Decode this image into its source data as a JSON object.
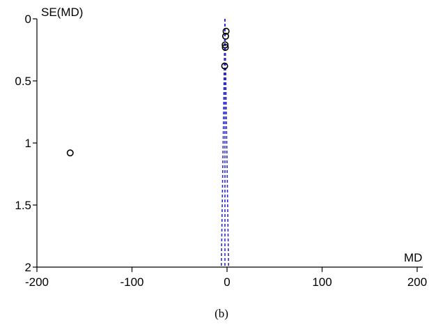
{
  "chart_data": {
    "type": "scatter",
    "subtype": "funnel-plot",
    "caption": "(b)",
    "ylabel": "SE(MD)",
    "xlabel": "MD",
    "xlim": [
      -200,
      200
    ],
    "ylim": [
      0,
      2
    ],
    "y_inverted": true,
    "x_ticks": [
      -200,
      -100,
      0,
      100,
      200
    ],
    "x_tick_labels": [
      "-200",
      "-100",
      "0",
      "100",
      "200"
    ],
    "y_ticks": [
      0,
      0.5,
      1,
      1.5,
      2
    ],
    "y_tick_labels": [
      "0",
      "0.5",
      "1",
      "1.5",
      "2"
    ],
    "grid": false,
    "points": [
      {
        "x": -1,
        "y": 0.1
      },
      {
        "x": -1.5,
        "y": 0.14
      },
      {
        "x": -2,
        "y": 0.21
      },
      {
        "x": -1.8,
        "y": 0.23
      },
      {
        "x": -2.5,
        "y": 0.38
      },
      {
        "x": -165,
        "y": 1.08
      }
    ],
    "funnel": {
      "center_x": -2.2,
      "apex_y": 0,
      "base_y": 2,
      "base_x": [
        -6,
        1.6
      ],
      "color": "#2a2ad0",
      "style": "dashed"
    },
    "axis_color": "#000000",
    "marker_color": "#000000"
  }
}
